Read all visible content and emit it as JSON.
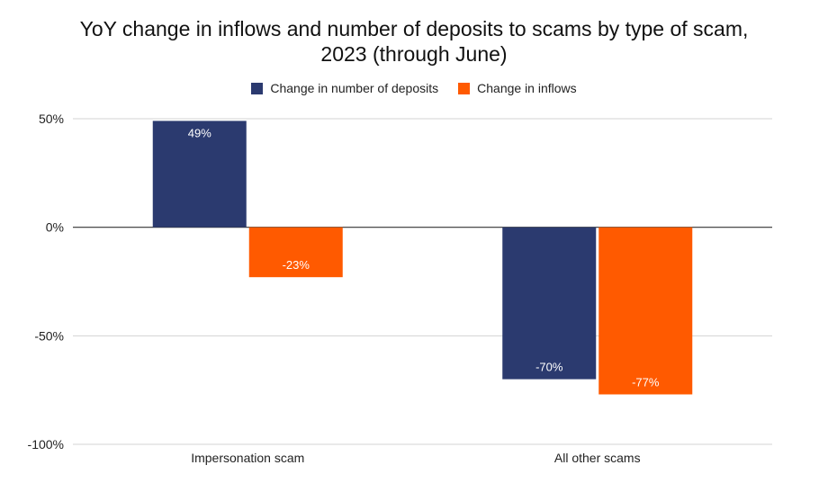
{
  "chart_data": {
    "type": "bar",
    "title": "YoY change in inflows and number of deposits to scams by type of scam, 2023 (through June)",
    "title_lines": [
      "YoY change in inflows and number of deposits to scams by type of scam,",
      "2023 (through June)"
    ],
    "categories": [
      "Impersonation scam",
      "All other scams"
    ],
    "series": [
      {
        "name": "Change in number of deposits",
        "color": "#2b3a6f",
        "values": [
          49,
          -70
        ],
        "labels": [
          "49%",
          "-70%"
        ]
      },
      {
        "name": "Change in inflows",
        "color": "#ff5a00",
        "values": [
          -23,
          -77
        ],
        "labels": [
          "-23%",
          "-77%"
        ]
      }
    ],
    "ylim": [
      -100,
      50
    ],
    "yticks": [
      50,
      0,
      -50,
      -100
    ],
    "ytick_labels": [
      "50%",
      "0%",
      "-50%",
      "-100%"
    ],
    "xlabel": "",
    "ylabel": "",
    "grid": true,
    "legend_position": "top"
  }
}
